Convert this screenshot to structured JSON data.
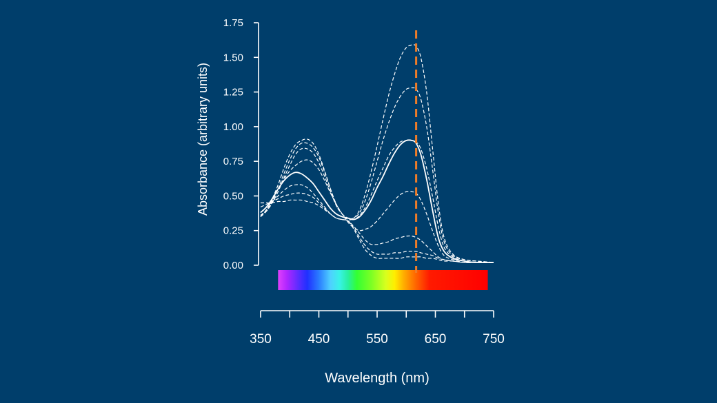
{
  "chart_data": {
    "type": "line",
    "title": "",
    "xlabel": "Wavelength (nm)",
    "ylabel": "Absorbance (arbitrary units)",
    "xlim": [
      350,
      750
    ],
    "ylim": [
      0,
      1.75
    ],
    "x_ticks": [
      350,
      400,
      450,
      500,
      550,
      600,
      650,
      700,
      750
    ],
    "x_tick_labels": [
      "350",
      "450",
      "550",
      "650",
      "750"
    ],
    "x_tick_label_values": [
      350,
      450,
      550,
      650,
      750
    ],
    "y_ticks": [
      0,
      0.25,
      0.5,
      0.75,
      1.0,
      1.25,
      1.5,
      1.75
    ],
    "y_tick_labels": [
      "0.00",
      "0.25",
      "0.50",
      "0.75",
      "1.00",
      "1.25",
      "1.50",
      "1.75"
    ],
    "grid": false,
    "legend": "none",
    "x": [
      350,
      360,
      370,
      380,
      390,
      400,
      410,
      420,
      430,
      440,
      450,
      460,
      470,
      480,
      490,
      500,
      510,
      520,
      530,
      540,
      550,
      560,
      570,
      580,
      590,
      600,
      610,
      617,
      625,
      635,
      645,
      655,
      665,
      680,
      700,
      720,
      750
    ],
    "series": [
      {
        "style": "dashed",
        "values": [
          0.35,
          0.4,
          0.48,
          0.58,
          0.7,
          0.8,
          0.87,
          0.9,
          0.91,
          0.88,
          0.8,
          0.68,
          0.55,
          0.43,
          0.37,
          0.33,
          0.34,
          0.4,
          0.52,
          0.68,
          0.86,
          1.05,
          1.23,
          1.38,
          1.5,
          1.57,
          1.59,
          1.58,
          1.5,
          1.25,
          0.85,
          0.45,
          0.2,
          0.08,
          0.04,
          0.03,
          0.02
        ]
      },
      {
        "style": "dashed",
        "values": [
          0.35,
          0.39,
          0.46,
          0.55,
          0.66,
          0.76,
          0.84,
          0.88,
          0.88,
          0.85,
          0.78,
          0.67,
          0.55,
          0.44,
          0.37,
          0.34,
          0.34,
          0.38,
          0.47,
          0.6,
          0.75,
          0.9,
          1.03,
          1.14,
          1.22,
          1.27,
          1.28,
          1.27,
          1.2,
          1.0,
          0.7,
          0.38,
          0.17,
          0.07,
          0.04,
          0.03,
          0.02
        ]
      },
      {
        "style": "dashed",
        "values": [
          0.36,
          0.39,
          0.45,
          0.53,
          0.63,
          0.72,
          0.8,
          0.84,
          0.84,
          0.81,
          0.74,
          0.64,
          0.53,
          0.43,
          0.37,
          0.34,
          0.33,
          0.36,
          0.42,
          0.51,
          0.61,
          0.7,
          0.79,
          0.85,
          0.89,
          0.9,
          0.9,
          0.89,
          0.84,
          0.7,
          0.5,
          0.28,
          0.13,
          0.06,
          0.03,
          0.02,
          0.02
        ]
      },
      {
        "style": "solid",
        "values": [
          0.38,
          0.42,
          0.48,
          0.55,
          0.61,
          0.65,
          0.67,
          0.66,
          0.63,
          0.59,
          0.53,
          0.47,
          0.41,
          0.37,
          0.35,
          0.34,
          0.33,
          0.35,
          0.4,
          0.47,
          0.56,
          0.64,
          0.73,
          0.81,
          0.87,
          0.9,
          0.9,
          0.88,
          0.8,
          0.62,
          0.4,
          0.2,
          0.1,
          0.05,
          0.03,
          0.02,
          0.02
        ]
      },
      {
        "style": "dashed",
        "values": [
          0.36,
          0.4,
          0.47,
          0.55,
          0.62,
          0.68,
          0.72,
          0.75,
          0.76,
          0.74,
          0.69,
          0.61,
          0.52,
          0.44,
          0.37,
          0.31,
          0.27,
          0.25,
          0.26,
          0.28,
          0.32,
          0.37,
          0.42,
          0.47,
          0.51,
          0.53,
          0.53,
          0.52,
          0.47,
          0.37,
          0.25,
          0.14,
          0.07,
          0.04,
          0.02,
          0.02,
          0.02
        ]
      },
      {
        "style": "dashed",
        "values": [
          0.38,
          0.42,
          0.46,
          0.5,
          0.54,
          0.57,
          0.58,
          0.58,
          0.56,
          0.52,
          0.47,
          0.42,
          0.37,
          0.34,
          0.33,
          0.32,
          0.28,
          0.23,
          0.18,
          0.15,
          0.15,
          0.16,
          0.17,
          0.19,
          0.2,
          0.21,
          0.21,
          0.2,
          0.18,
          0.14,
          0.1,
          0.06,
          0.04,
          0.03,
          0.02,
          0.02,
          0.02
        ]
      },
      {
        "style": "dashed",
        "values": [
          0.42,
          0.44,
          0.46,
          0.48,
          0.5,
          0.51,
          0.52,
          0.52,
          0.51,
          0.49,
          0.45,
          0.41,
          0.37,
          0.34,
          0.33,
          0.32,
          0.27,
          0.2,
          0.14,
          0.1,
          0.08,
          0.08,
          0.08,
          0.09,
          0.09,
          0.1,
          0.1,
          0.1,
          0.09,
          0.08,
          0.07,
          0.05,
          0.04,
          0.03,
          0.02,
          0.02,
          0.02
        ]
      },
      {
        "style": "dashed",
        "values": [
          0.45,
          0.45,
          0.45,
          0.46,
          0.46,
          0.47,
          0.47,
          0.47,
          0.46,
          0.45,
          0.43,
          0.4,
          0.37,
          0.34,
          0.33,
          0.32,
          0.26,
          0.18,
          0.11,
          0.07,
          0.05,
          0.05,
          0.05,
          0.05,
          0.05,
          0.06,
          0.06,
          0.06,
          0.06,
          0.05,
          0.05,
          0.04,
          0.03,
          0.03,
          0.02,
          0.02,
          0.02
        ]
      }
    ],
    "marker": {
      "x": 617,
      "color": "#f07d28",
      "style": "dashed"
    },
    "spectrum_bar": {
      "x_range": [
        380,
        740
      ],
      "stops": [
        {
          "x": 380,
          "color": "#e040fb"
        },
        {
          "x": 395,
          "color": "#b026ff"
        },
        {
          "x": 415,
          "color": "#5a2dff"
        },
        {
          "x": 430,
          "color": "#2030ff"
        },
        {
          "x": 450,
          "color": "#2a7cff"
        },
        {
          "x": 470,
          "color": "#4fd0ff"
        },
        {
          "x": 485,
          "color": "#39f2e8"
        },
        {
          "x": 500,
          "color": "#28f0a0"
        },
        {
          "x": 515,
          "color": "#33ff33"
        },
        {
          "x": 540,
          "color": "#7cff24"
        },
        {
          "x": 565,
          "color": "#d8ff1e"
        },
        {
          "x": 580,
          "color": "#ffee00"
        },
        {
          "x": 595,
          "color": "#ffb000"
        },
        {
          "x": 615,
          "color": "#ff6a00"
        },
        {
          "x": 640,
          "color": "#ff1a00"
        },
        {
          "x": 740,
          "color": "#ff0000"
        }
      ]
    },
    "colors": {
      "background": "#003e6b",
      "line": "#ffffff",
      "marker": "#f07d28"
    }
  }
}
